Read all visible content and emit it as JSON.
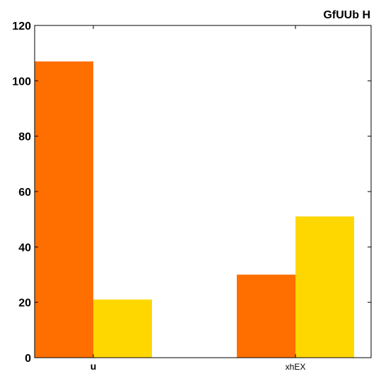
{
  "chart_data": {
    "type": "bar",
    "title": "GfUUb H",
    "categories": [
      "u",
      "xhEX"
    ],
    "series": [
      {
        "values": [
          107,
          30
        ],
        "color": "#ff6f00"
      },
      {
        "values": [
          21,
          51
        ],
        "color": "#ffd700"
      }
    ],
    "ylim": [
      0,
      120
    ],
    "yticks": [
      0,
      20,
      40,
      60,
      80,
      100,
      120
    ],
    "xlabel": "",
    "ylabel": "",
    "grid": false,
    "legend": "none"
  }
}
